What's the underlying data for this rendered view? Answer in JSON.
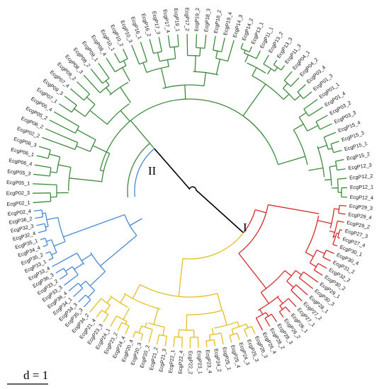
{
  "clade_labels": {
    "one": "I",
    "two": "II"
  },
  "scale": {
    "label": "d = 1"
  },
  "colors": {
    "green": "#3d8a3d",
    "red": "#d42a2a",
    "yellow": "#e6bc22",
    "blue": "#4a88d6",
    "black": "#000000"
  },
  "leaves": {
    "red": [
      "EcgP29_3",
      "EcgP29_4",
      "EcgP29_2",
      "EcgP27_3",
      "EcgP27_4",
      "EcgP30_1",
      "EcgP30_4",
      "EcgP31_2",
      "EcgP32_2",
      "EcgP30_2",
      "EcgP29_1",
      "EcgP30_3",
      "EcgP28_1",
      "EcgP27_2",
      "EcgP27_1",
      "EcgP26_1",
      "EcgP26_2",
      "EcgP28_3",
      "EcgP28_2",
      "EcgP26_4"
    ],
    "yellow": [
      "EcgP26_3",
      "EcgP25_3",
      "EcgP24_3",
      "EcgP25_4",
      "EcgP25_1",
      "EcgP24_2",
      "EcgP23_4",
      "EcgP23_1",
      "EcgP22_2",
      "EcgP22_4",
      "EcgP22_1",
      "EcgP21_3",
      "EcgP21_2",
      "EcgP20_2",
      "EcgP20_3",
      "EcgP20_4",
      "EcgP24_4",
      "EcgP23_2",
      "EcgP24_1",
      "EcgP23_3",
      "EcgP21_4",
      "EcgP34_2"
    ],
    "blue": [
      "EcgP35_3",
      "EcgP34_3",
      "EcgP34_1",
      "EcgP36_4",
      "EcgP33_3",
      "EcgP33_2",
      "EcgP36_3",
      "EcgP33_4",
      "EcgP33_1",
      "EcgP35_2",
      "EcgP34_4",
      "EcgP35_1",
      "EcgP32_4",
      "EcgP32_3",
      "EcgP36_2",
      "EcgP02_4"
    ],
    "green": [
      "EcgP02_1",
      "EcgP02_3",
      "EcgP05_1",
      "EcgP05_3",
      "EcgP06_4",
      "EcgP06_1",
      "EcgP06_3",
      "EcgP02_2",
      "EcgP06_2",
      "EcgP05_2",
      "EcgP05_4",
      "EcgP07_1",
      "EcgP09_3",
      "EcgP07_4",
      "EcgP09_2",
      "EcgP08_3",
      "EcgP08_2",
      "EcgP09_1",
      "EcgP08_4",
      "EcgP10_1",
      "EcgP10_2",
      "EcgP10_3",
      "EcgP16_1",
      "EcgP16_2",
      "EcgP17_3",
      "EcgP17_4",
      "EcgP19_1",
      "EcgP17_2",
      "EcgP19_2",
      "EcgP18_3",
      "EcgP18_2",
      "EcgP19_4",
      "EcgP14_3",
      "EcgP14_2",
      "EcgP13_1",
      "EcgP11_1",
      "EcgP13_2",
      "EcgP13_3",
      "EcgP11_3",
      "EcgP04_1",
      "EcgP04_2",
      "EcgP03_4",
      "EcgP01_3",
      "EcgP01_1",
      "EcgP01_4",
      "EcgP03_2",
      "EcgP03_3",
      "EcgP15_4",
      "EcgP15_3",
      "EcgP15_1",
      "EcgP15_2",
      "EcgP12_3",
      "EcgP12_2",
      "EcgP12_1",
      "EcgP12_4"
    ]
  }
}
